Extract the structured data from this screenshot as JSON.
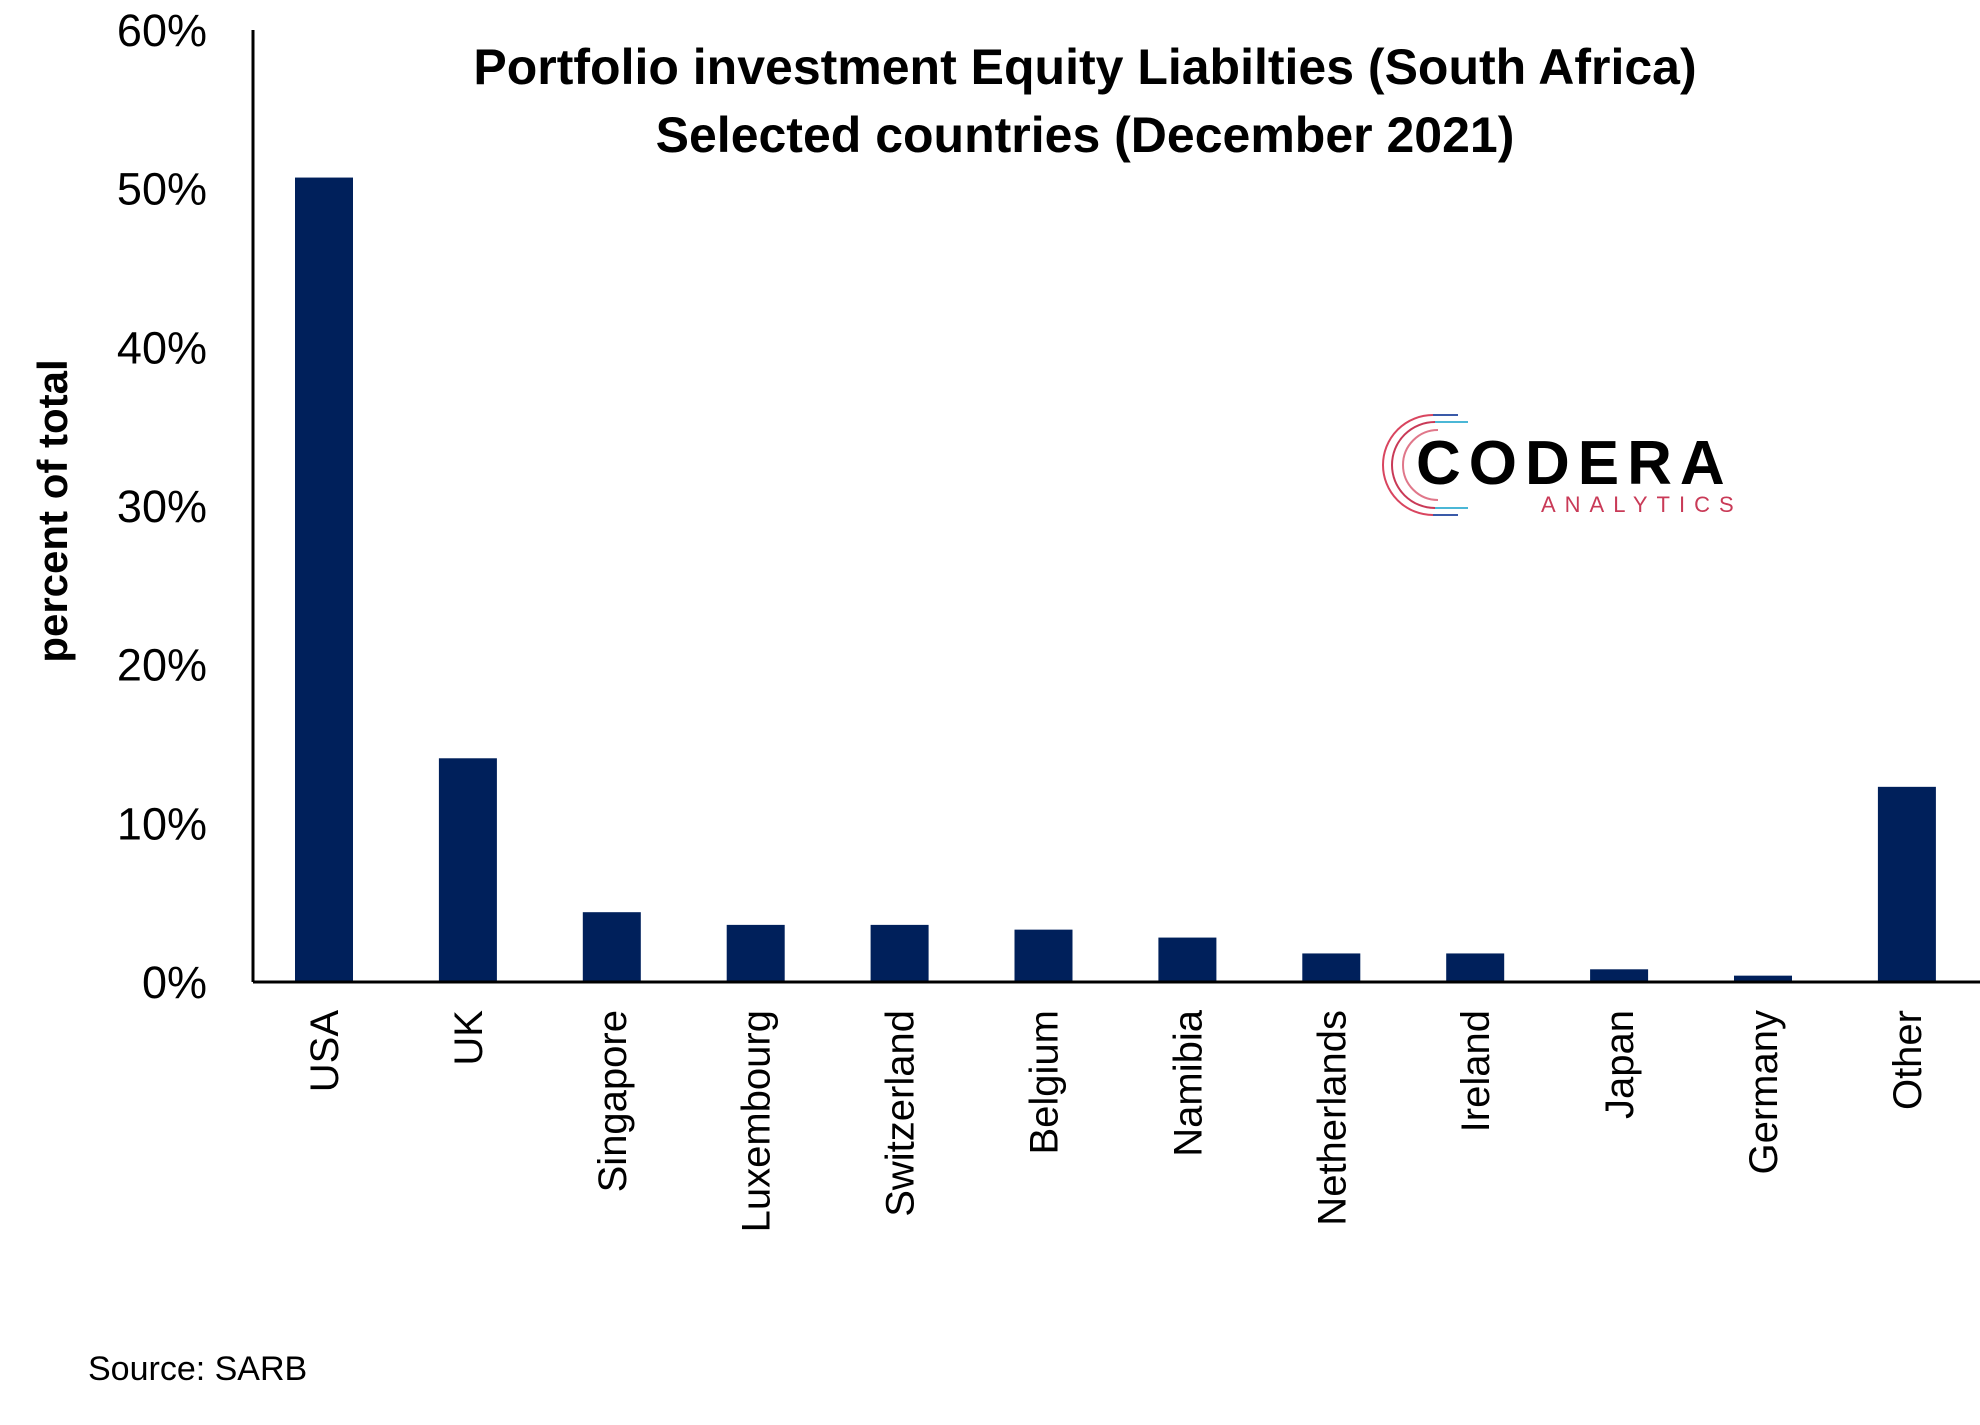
{
  "chart_data": {
    "type": "bar",
    "title": "Portfolio investment Equity Liabilties (South Africa)",
    "subtitle": "Selected countries (December 2021)",
    "xlabel": "",
    "ylabel": "percent of total",
    "ylim": [
      0,
      60
    ],
    "yticks": [
      "0%",
      "10%",
      "20%",
      "30%",
      "40%",
      "50%",
      "60%"
    ],
    "grid": false,
    "bar_color": "#00205B",
    "categories": [
      "USA",
      "UK",
      "Singapore",
      "Luxembourg",
      "Switzerland",
      "Belgium",
      "Namibia",
      "Netherlands",
      "Ireland",
      "Japan",
      "Germany",
      "Other"
    ],
    "values": [
      50.7,
      14.1,
      4.4,
      3.6,
      3.6,
      3.3,
      2.8,
      1.8,
      1.8,
      0.8,
      0.4,
      12.3
    ]
  },
  "source": "Source: SARB",
  "logo": {
    "name": "CODERA",
    "sub": "ANALYTICS"
  }
}
